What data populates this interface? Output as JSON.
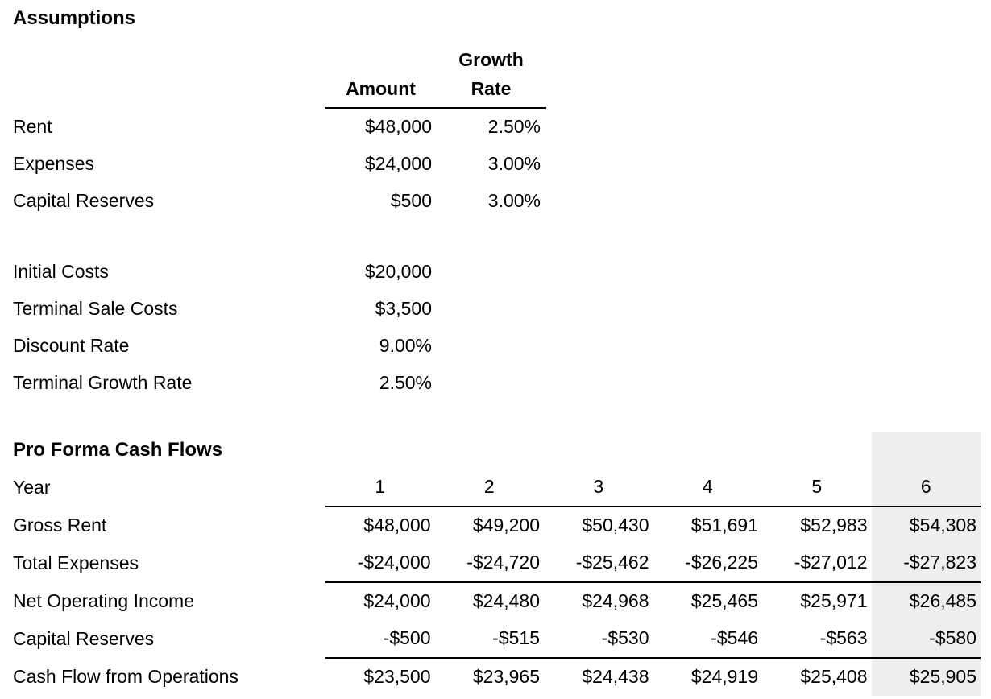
{
  "page": {
    "background_color": "#ffffff",
    "text_color": "#000000",
    "highlight_color": "#eeeeee"
  },
  "assumptions": {
    "title": "Assumptions",
    "headers": {
      "amount": "Amount",
      "growth_line1": "Growth",
      "growth_line2": "Rate"
    },
    "rows": [
      {
        "label": "Rent",
        "amount": "$48,000",
        "growth_rate": "2.50%"
      },
      {
        "label": "Expenses",
        "amount": "$24,000",
        "growth_rate": "3.00%"
      },
      {
        "label": "Capital Reserves",
        "amount": "$500",
        "growth_rate": "3.00%"
      }
    ],
    "single_rows": [
      {
        "label": "Initial Costs",
        "amount": "$20,000"
      },
      {
        "label": "Terminal Sale Costs",
        "amount": "$3,500"
      },
      {
        "label": "Discount Rate",
        "amount": "9.00%"
      },
      {
        "label": "Terminal Growth Rate",
        "amount": "2.50%"
      }
    ]
  },
  "pro_forma": {
    "title": "Pro Forma Cash Flows",
    "year_label": "Year",
    "years": [
      "1",
      "2",
      "3",
      "4",
      "5",
      "6"
    ],
    "highlighted_year": "6",
    "rows": [
      {
        "label": "Gross Rent",
        "values": [
          "$48,000",
          "$49,200",
          "$50,430",
          "$51,691",
          "$52,983",
          "$54,308"
        ]
      },
      {
        "label": "Total Expenses",
        "values": [
          "-$24,000",
          "-$24,720",
          "-$25,462",
          "-$26,225",
          "-$27,012",
          "-$27,823"
        ]
      },
      {
        "label": "Net Operating Income",
        "values": [
          "$24,000",
          "$24,480",
          "$24,968",
          "$25,465",
          "$25,971",
          "$26,485"
        ]
      },
      {
        "label": "Capital Reserves",
        "values": [
          "-$500",
          "-$515",
          "-$530",
          "-$546",
          "-$563",
          "-$580"
        ]
      },
      {
        "label": "Cash Flow from Operations",
        "values": [
          "$23,500",
          "$23,965",
          "$24,438",
          "$24,919",
          "$25,408",
          "$25,905"
        ]
      }
    ]
  }
}
